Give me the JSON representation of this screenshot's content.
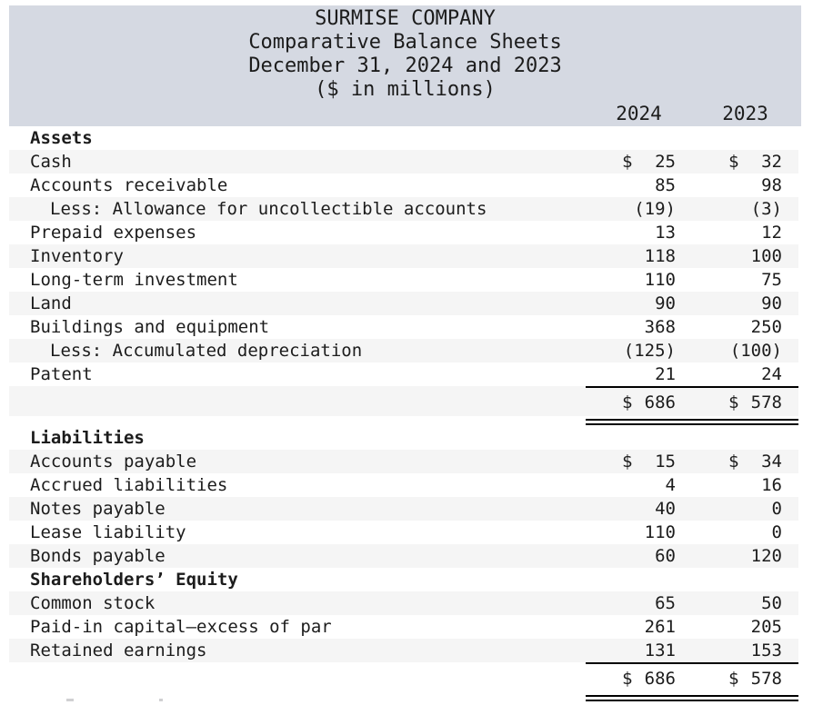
{
  "colors": {
    "header_band": "#d5d9e2",
    "row_stripe": "#f5f5f5"
  },
  "header": {
    "title_lines": [
      "SURMISE COMPANY",
      "Comparative Balance Sheets",
      "December 31, 2024 and 2023",
      "($ in millions)"
    ],
    "columns": [
      "2024",
      "2023"
    ]
  },
  "table": {
    "rows": [
      {
        "name": "section-assets",
        "label": "Assets",
        "section": true
      },
      {
        "name": "row-cash",
        "label": "Cash",
        "v2024": "25",
        "v2023": "32",
        "dollar": true
      },
      {
        "name": "row-accounts-receivable",
        "label": "Accounts receivable",
        "v2024": "85",
        "v2023": "98"
      },
      {
        "name": "row-allowance-uncollectible",
        "label": "Less: Allowance for uncollectible accounts",
        "v2024": "(19)",
        "v2023": "(3)",
        "indent": true
      },
      {
        "name": "row-prepaid-expenses",
        "label": "Prepaid expenses",
        "v2024": "13",
        "v2023": "12"
      },
      {
        "name": "row-inventory",
        "label": "Inventory",
        "v2024": "118",
        "v2023": "100"
      },
      {
        "name": "row-long-term-investment",
        "label": "Long-term investment",
        "v2024": "110",
        "v2023": "75"
      },
      {
        "name": "row-land",
        "label": "Land",
        "v2024": "90",
        "v2023": "90"
      },
      {
        "name": "row-buildings-equipment",
        "label": "Buildings and equipment",
        "v2024": "368",
        "v2023": "250"
      },
      {
        "name": "row-accumulated-depreciation",
        "label": "Less: Accumulated depreciation",
        "v2024": "(125)",
        "v2023": "(100)",
        "indent": true
      },
      {
        "name": "row-patent",
        "label": "Patent",
        "v2024": "21",
        "v2023": "24"
      },
      {
        "name": "row-total-assets",
        "label": "",
        "v2024": "686",
        "v2023": "578",
        "dollar": true,
        "total": true,
        "rule_top": true,
        "rule_below": "double"
      },
      {
        "name": "section-liabilities",
        "label": "Liabilities",
        "section": true
      },
      {
        "name": "row-accounts-payable",
        "label": "Accounts payable",
        "v2024": "15",
        "v2023": "34",
        "dollar": true
      },
      {
        "name": "row-accrued-liabilities",
        "label": "Accrued liabilities",
        "v2024": "4",
        "v2023": "16"
      },
      {
        "name": "row-notes-payable",
        "label": "Notes payable",
        "v2024": "40",
        "v2023": "0"
      },
      {
        "name": "row-lease-liability",
        "label": "Lease liability",
        "v2024": "110",
        "v2023": "0"
      },
      {
        "name": "row-bonds-payable",
        "label": "Bonds payable",
        "v2024": "60",
        "v2023": "120"
      },
      {
        "name": "section-shareholders-equity",
        "label": "Shareholders’ Equity",
        "section": true
      },
      {
        "name": "row-common-stock",
        "label": "Common stock",
        "v2024": "65",
        "v2023": "50"
      },
      {
        "name": "row-paid-in-capital",
        "label": "Paid-in capital—excess of par",
        "v2024": "261",
        "v2023": "205"
      },
      {
        "name": "row-retained-earnings",
        "label": "Retained earnings",
        "v2024": "131",
        "v2023": "153"
      },
      {
        "name": "row-total-liabilities-equity",
        "label": "",
        "v2024": "686",
        "v2023": "578",
        "dollar": true,
        "total": true,
        "rule_top": true,
        "rule_below": "double"
      }
    ]
  }
}
